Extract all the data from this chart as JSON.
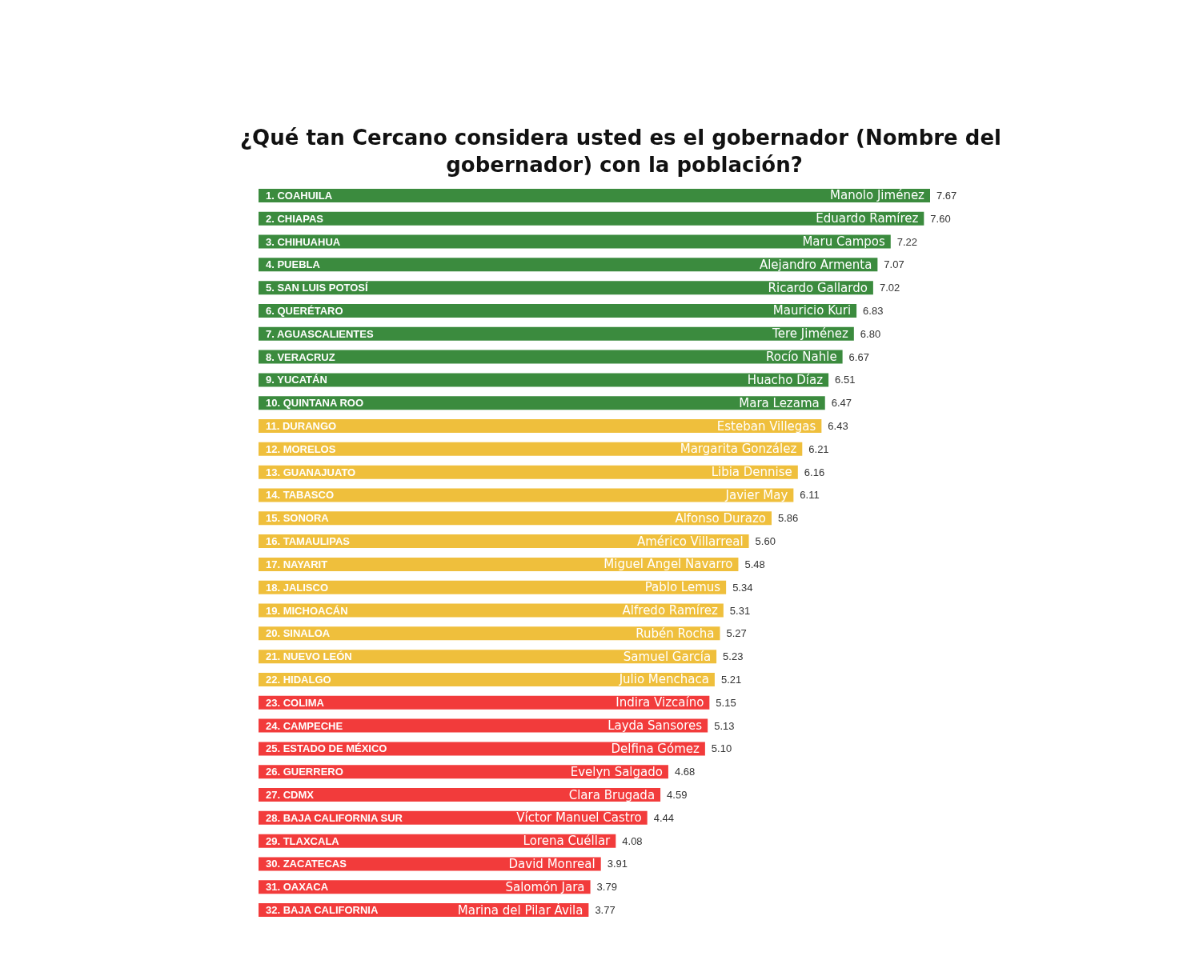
{
  "chart_data": {
    "type": "bar",
    "orientation": "horizontal",
    "title": "¿Qué tan Cercano considera usted es el gobernador (Nombre del gobernador) con la población?",
    "categories": [
      "1. COAHUILA",
      "2. CHIAPAS",
      "3. CHIHUAHUA",
      "4. PUEBLA",
      "5. SAN LUIS POTOSÍ",
      "6. QUERÉTARO",
      "7. AGUASCALIENTES",
      "8. VERACRUZ",
      "9. YUCATÁN",
      "10. QUINTANA ROO",
      "11. DURANGO",
      "12. MORELOS",
      "13. GUANAJUATO",
      "14. TABASCO",
      "15. SONORA",
      "16. TAMAULIPAS",
      "17. NAYARIT",
      "18. JALISCO",
      "19. MICHOACÁN",
      "20. SINALOA",
      "21. NUEVO LEÓN",
      "22. HIDALGO",
      "23. COLIMA",
      "24. CAMPECHE",
      "25. ESTADO DE MÉXICO",
      "26. GUERRERO",
      "27. CDMX",
      "28. BAJA CALIFORNIA SUR",
      "29. TLAXCALA",
      "30. ZACATECAS",
      "31. OAXACA",
      "32. BAJA CALIFORNIA"
    ],
    "values": [
      7.67,
      7.6,
      7.22,
      7.07,
      7.02,
      6.83,
      6.8,
      6.67,
      6.51,
      6.47,
      6.43,
      6.21,
      6.16,
      6.11,
      5.86,
      5.6,
      5.48,
      5.34,
      5.31,
      5.27,
      5.23,
      5.21,
      5.15,
      5.13,
      5.1,
      4.68,
      4.59,
      4.44,
      4.08,
      3.91,
      3.79,
      3.77
    ],
    "colors": [
      "#3b8b3e",
      "#3b8b3e",
      "#3b8b3e",
      "#3b8b3e",
      "#3b8b3e",
      "#3b8b3e",
      "#3b8b3e",
      "#3b8b3e",
      "#3b8b3e",
      "#3b8b3e",
      "#efbf3c",
      "#efbf3c",
      "#efbf3c",
      "#efbf3c",
      "#efbf3c",
      "#efbf3c",
      "#efbf3c",
      "#efbf3c",
      "#efbf3c",
      "#efbf3c",
      "#efbf3c",
      "#efbf3c",
      "#f23b3b",
      "#f23b3b",
      "#f23b3b",
      "#f23b3b",
      "#f23b3b",
      "#f23b3b",
      "#f23b3b",
      "#f23b3b",
      "#f23b3b",
      "#f23b3b"
    ],
    "value_labels": [
      "7.67",
      "7.60",
      "7.22",
      "7.07",
      "7.02",
      "6.83",
      "6.80",
      "6.67",
      "6.51",
      "6.47",
      "6.43",
      "6.21",
      "6.16",
      "6.11",
      "5.86",
      "5.60",
      "5.48",
      "5.34",
      "5.31",
      "5.27",
      "5.23",
      "5.21",
      "5.15",
      "5.13",
      "5.10",
      "4.68",
      "4.59",
      "4.44",
      "4.08",
      "3.91",
      "3.79",
      "3.77"
    ],
    "tick_labels": "y",
    "annotations": [
      {
        "text": "Manolo Jiménez",
        "x": 7.67,
        "y": "1. COAHUILA"
      },
      {
        "text": "Eduardo Ramírez",
        "x": 7.6,
        "y": "2. CHIAPAS"
      },
      {
        "text": "Maru Campos",
        "x": 7.22,
        "y": "3. CHIHUAHUA"
      },
      {
        "text": "Alejandro Armenta",
        "x": 7.07,
        "y": "4. PUEBLA"
      },
      {
        "text": "Ricardo Gallardo",
        "x": 7.02,
        "y": "5. SAN LUIS POTOSÍ"
      },
      {
        "text": "Mauricio Kuri",
        "x": 6.83,
        "y": "6. QUERÉTARO"
      },
      {
        "text": "Tere Jiménez",
        "x": 6.8,
        "y": "7. AGUASCALIENTES"
      },
      {
        "text": "Rocío Nahle",
        "x": 6.67,
        "y": "8. VERACRUZ"
      },
      {
        "text": "Huacho Díaz",
        "x": 6.51,
        "y": "9. YUCATÁN"
      },
      {
        "text": "Mara Lezama",
        "x": 6.47,
        "y": "10. QUINTANA ROO"
      },
      {
        "text": "Esteban Villegas",
        "x": 6.43,
        "y": "11. DURANGO"
      },
      {
        "text": "Margarita González",
        "x": 6.21,
        "y": "12. MORELOS"
      },
      {
        "text": "Libia Dennise",
        "x": 6.16,
        "y": "13. GUANAJUATO"
      },
      {
        "text": "Javier May",
        "x": 6.11,
        "y": "14. TABASCO"
      },
      {
        "text": "Alfonso Durazo",
        "x": 5.86,
        "y": "15. SONORA"
      },
      {
        "text": "Américo Villarreal",
        "x": 5.6,
        "y": "16. TAMAULIPAS"
      },
      {
        "text": "Miguel Ángel Navarro",
        "x": 5.48,
        "y": "17. NAYARIT"
      },
      {
        "text": "Pablo Lemus",
        "x": 5.34,
        "y": "18. JALISCO"
      },
      {
        "text": "Alfredo Ramírez",
        "x": 5.31,
        "y": "19. MICHOACÁN"
      },
      {
        "text": "Rubén Rocha",
        "x": 5.27,
        "y": "20. SINALOA"
      },
      {
        "text": "Samuel García",
        "x": 5.23,
        "y": "21. NUEVO LEÓN"
      },
      {
        "text": "Julio Menchaca",
        "x": 5.21,
        "y": "22. HIDALGO"
      },
      {
        "text": "Indira Vizcaíno",
        "x": 5.15,
        "y": "23. COLIMA"
      },
      {
        "text": "Layda Sansores",
        "x": 5.13,
        "y": "24. CAMPECHE"
      },
      {
        "text": "Delfina Gómez",
        "x": 5.1,
        "y": "25. ESTADO DE MÉXICO"
      },
      {
        "text": "Evelyn Salgado",
        "x": 4.68,
        "y": "26. GUERRERO"
      },
      {
        "text": "Clara Brugada",
        "x": 4.59,
        "y": "27. CDMX"
      },
      {
        "text": "Víctor Manuel Castro",
        "x": 4.44,
        "y": "28. BAJA CALIFORNIA SUR"
      },
      {
        "text": "Lorena Cuéllar",
        "x": 4.08,
        "y": "29. TLAXCALA"
      },
      {
        "text": "David Monreal",
        "x": 3.91,
        "y": "30. ZACATECAS"
      },
      {
        "text": "Salomón Jara",
        "x": 3.79,
        "y": "31. OAXACA"
      },
      {
        "text": "Marina del Pilar Ávila",
        "x": 3.77,
        "y": "32. BAJA CALIFORNIA"
      }
    ]
  }
}
